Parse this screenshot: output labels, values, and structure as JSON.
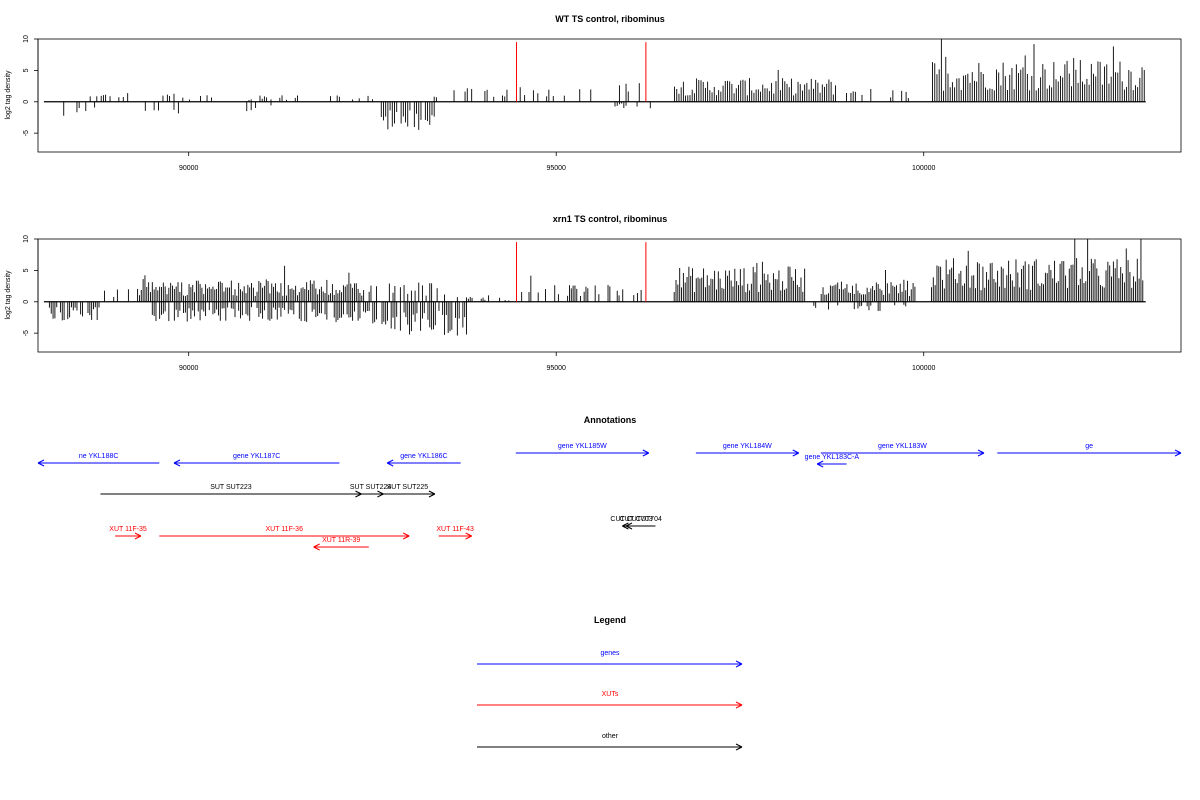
{
  "chart_data": [
    {
      "type": "bar",
      "title": "WT TS control, ribominus",
      "ylabel": "log2 tag density",
      "xlim": [
        87950,
        103500
      ],
      "ylim": [
        -8,
        10
      ],
      "x_ticks": [
        "90000",
        "95000",
        "100000"
      ],
      "y_ticks": [
        "10",
        "5",
        "0",
        "-5"
      ],
      "markers_x": [
        94460,
        96220
      ],
      "markers_color": "#ff0000",
      "series": [
        {
          "x_start": 88030,
          "x_end": 103020,
          "bin_width": 30,
          "pos_segments": [
            [
              [
                88600,
                89200
              ],
              1.2
            ],
            [
              [
                89600,
                90500
              ],
              1.0
            ],
            [
              [
                90800,
                91500
              ],
              0.8
            ],
            [
              [
                91700,
                92500
              ],
              0.8
            ],
            [
              [
                93300,
                94400
              ],
              1.6
            ],
            [
              [
                94500,
                96200
              ],
              2.2
            ],
            [
              [
                96600,
                98800
              ],
              2.8
            ],
            [
              [
                98900,
                99900
              ],
              1.6
            ],
            [
              [
                100100,
                103000
              ],
              5.0
            ]
          ],
          "neg_segments": [
            [
              [
                88100,
                88900
              ],
              -1.8
            ],
            [
              [
                89300,
                90100
              ],
              -1.6
            ],
            [
              [
                90700,
                91300
              ],
              -1.2
            ],
            [
              [
                92600,
                93400
              ],
              -3.5
            ],
            [
              [
                95700,
                96300
              ],
              -0.8
            ]
          ]
        }
      ]
    },
    {
      "type": "bar",
      "title": "xrn1 TS control, ribominus",
      "ylabel": "log2 tag density",
      "xlim": [
        87950,
        103500
      ],
      "ylim": [
        -8,
        10
      ],
      "x_ticks": [
        "90000",
        "95000",
        "100000"
      ],
      "y_ticks": [
        "10",
        "5",
        "0",
        "-5"
      ],
      "markers_x": [
        94460,
        96220
      ],
      "markers_color": "#ff0000",
      "series": [
        {
          "x_start": 88030,
          "x_end": 103020,
          "bin_width": 25,
          "pos_segments": [
            [
              [
                88700,
                89300
              ],
              2.0
            ],
            [
              [
                89300,
                92400
              ],
              2.6
            ],
            [
              [
                92400,
                93600
              ],
              2.4
            ],
            [
              [
                93600,
                94400
              ],
              0.6
            ],
            [
              [
                94500,
                96200
              ],
              2.0
            ],
            [
              [
                96600,
                98400
              ],
              4.2
            ],
            [
              [
                98600,
                99900
              ],
              2.6
            ],
            [
              [
                100100,
                103000
              ],
              5.2
            ]
          ],
          "neg_segments": [
            [
              [
                88100,
                88800
              ],
              -2.2
            ],
            [
              [
                89500,
                92500
              ],
              -2.4
            ],
            [
              [
                92500,
                93800
              ],
              -4.0
            ],
            [
              [
                98500,
                99800
              ],
              -1.2
            ]
          ]
        }
      ]
    }
  ],
  "annotations": {
    "title": "Annotations",
    "genes": [
      {
        "label": "ne YKL188C",
        "x1": 87950,
        "x2": 89600,
        "dir": "-"
      },
      {
        "label": "gene YKL187C",
        "x1": 89800,
        "x2": 92050,
        "dir": "-"
      },
      {
        "label": "gene YKL186C",
        "x1": 92700,
        "x2": 93700,
        "dir": "-"
      },
      {
        "label": "gene YKL185W",
        "x1": 94450,
        "x2": 96260,
        "dir": "+"
      },
      {
        "label": "gene YKL184W",
        "x1": 96900,
        "x2": 98300,
        "dir": "+"
      },
      {
        "label": "gene YKL183W",
        "x1": 98600,
        "x2": 100820,
        "dir": "+"
      },
      {
        "label": "gene YKL183C-A",
        "x1": 98550,
        "x2": 98950,
        "dir": "-"
      },
      {
        "label": "ge",
        "x1": 101000,
        "x2": 103500,
        "dir": "+"
      }
    ],
    "suts": [
      {
        "label": "SUT SUT223",
        "x1": 88800,
        "x2": 92350,
        "dir": "+"
      },
      {
        "label": "SUT SUT224",
        "x1": 92300,
        "x2": 92650,
        "dir": "+"
      },
      {
        "label": "SUT SUT225",
        "x1": 92600,
        "x2": 93350,
        "dir": "+"
      },
      {
        "label": "CUT CUT703",
        "x1": 95900,
        "x2": 96150,
        "dir": "-"
      },
      {
        "label": "CUT CUT704",
        "x1": 95950,
        "x2": 96350,
        "dir": "-"
      }
    ],
    "xuts": [
      {
        "label": "XUT 11F-35",
        "x1": 89000,
        "x2": 89350,
        "dir": "+"
      },
      {
        "label": "XUT 11F-36",
        "x1": 89600,
        "x2": 93000,
        "dir": "+"
      },
      {
        "label": "XUT 11R-39",
        "x1": 91700,
        "x2": 92450,
        "dir": "-"
      },
      {
        "label": "XUT 11F-43",
        "x1": 93400,
        "x2": 93850,
        "dir": "+"
      }
    ]
  },
  "legend": {
    "title": "Legend",
    "entries": [
      {
        "label": "genes",
        "color": "#0000ff"
      },
      {
        "label": "XUTs",
        "color": "#ff0000"
      },
      {
        "label": "other",
        "color": "#000000"
      }
    ]
  },
  "colors": {
    "genes": "#0000ff",
    "xuts": "#ff0000",
    "other": "#000000",
    "marker": "#ff0000",
    "axis": "#000000"
  }
}
